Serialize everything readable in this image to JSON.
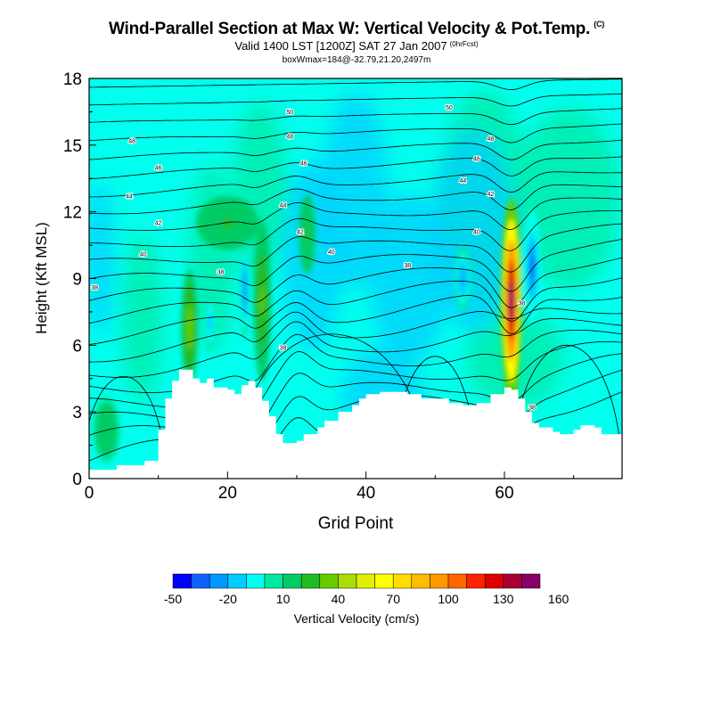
{
  "chart_data": {
    "type": "heatmap",
    "title": "Wind-Parallel Section at Max W: Vertical Velocity & Pot.Temp.",
    "title_tag": "(C)",
    "subtitle": "Valid 1400 LST [1200Z] SAT 27 Jan 2007",
    "subtitle_tag": "(0hrFcst)",
    "subtitle2": "boxWmax=184@-32.79,21.20,2497m",
    "xlabel": "Grid Point",
    "ylabel": "Height (Kft MSL)",
    "xlim": [
      0,
      77
    ],
    "ylim": [
      0,
      18
    ],
    "x_ticks": [
      "0",
      "20",
      "40",
      "60"
    ],
    "y_ticks": [
      "0",
      "3",
      "6",
      "9",
      "12",
      "15",
      "18"
    ],
    "colorbar": {
      "label": "Vertical Velocity (cm/s)",
      "tick_labels": [
        "-50",
        "-20",
        "10",
        "40",
        "70",
        "100",
        "130",
        "160"
      ],
      "colors": [
        "#0000ff",
        "#1060ff",
        "#0099ff",
        "#00ccff",
        "#00ffee",
        "#00e8a0",
        "#00cc66",
        "#22bb22",
        "#66cc00",
        "#aadd00",
        "#e0ee00",
        "#ffff00",
        "#ffdd00",
        "#ffbb00",
        "#ff9900",
        "#ff6600",
        "#ff2200",
        "#dd0000",
        "#aa0033",
        "#880066"
      ]
    },
    "terrain_top": [
      [
        0,
        0.4
      ],
      [
        4,
        0.6
      ],
      [
        8,
        0.8
      ],
      [
        10,
        2.2
      ],
      [
        11,
        3.6
      ],
      [
        12,
        4.4
      ],
      [
        13,
        4.9
      ],
      [
        14,
        4.9
      ],
      [
        15,
        4.5
      ],
      [
        16,
        4.3
      ],
      [
        17,
        4.5
      ],
      [
        18,
        4.1
      ],
      [
        20,
        4.0
      ],
      [
        21,
        3.8
      ],
      [
        22,
        4.2
      ],
      [
        23,
        4.4
      ],
      [
        24,
        4.1
      ],
      [
        25,
        3.5
      ],
      [
        26,
        2.8
      ],
      [
        27,
        2.0
      ],
      [
        28,
        1.6
      ],
      [
        30,
        1.7
      ],
      [
        31,
        2.0
      ],
      [
        33,
        2.3
      ],
      [
        34,
        2.6
      ],
      [
        36,
        3.0
      ],
      [
        38,
        3.3
      ],
      [
        39,
        3.6
      ],
      [
        40,
        3.8
      ],
      [
        42,
        3.9
      ],
      [
        44,
        3.9
      ],
      [
        46,
        3.8
      ],
      [
        48,
        3.6
      ],
      [
        50,
        3.6
      ],
      [
        52,
        3.4
      ],
      [
        54,
        3.3
      ],
      [
        56,
        3.4
      ],
      [
        58,
        3.8
      ],
      [
        60,
        4.1
      ],
      [
        61,
        4.0
      ],
      [
        62,
        3.6
      ],
      [
        63,
        3.0
      ],
      [
        64,
        2.5
      ],
      [
        65,
        2.3
      ],
      [
        67,
        2.1
      ],
      [
        68,
        2.0
      ],
      [
        70,
        2.2
      ],
      [
        71,
        2.4
      ],
      [
        73,
        2.3
      ],
      [
        74,
        2.0
      ],
      [
        77,
        2.0
      ]
    ],
    "updrafts": [
      {
        "x": 61,
        "y": 8.0,
        "width": 1.5,
        "height": 4.6,
        "value": 184
      },
      {
        "x": 14.5,
        "y": 6.8,
        "width": 1.2,
        "height": 2.6,
        "value": 45
      },
      {
        "x": 25,
        "y": 8.0,
        "width": 1.3,
        "height": 3.6,
        "value": 40
      },
      {
        "x": 31.5,
        "y": 11.0,
        "width": 1.2,
        "height": 1.8,
        "value": 25
      },
      {
        "x": 20,
        "y": 11.5,
        "width": 4.5,
        "height": 1.2,
        "value": 25
      },
      {
        "x": 2.5,
        "y": 2.2,
        "width": 2.0,
        "height": 1.5,
        "value": 15
      }
    ],
    "downdrafts": [
      {
        "x": 64,
        "y": 9.5,
        "width": 1.3,
        "height": 2.6,
        "value": -45
      },
      {
        "x": 22.5,
        "y": 8.5,
        "width": 0.7,
        "height": 2.2,
        "value": -35
      },
      {
        "x": 54,
        "y": 9.0,
        "width": 1.2,
        "height": 1.4,
        "value": -30
      },
      {
        "x": 17.5,
        "y": 7.0,
        "width": 0.8,
        "height": 1.2,
        "value": -20
      }
    ],
    "isentrope_labels": [
      {
        "x": 0.8,
        "y": 8.6,
        "text": "38"
      },
      {
        "x": 7.8,
        "y": 10.1,
        "text": "40"
      },
      {
        "x": 10,
        "y": 11.5,
        "text": "42"
      },
      {
        "x": 5.8,
        "y": 12.7,
        "text": "44"
      },
      {
        "x": 10,
        "y": 14.0,
        "text": "46"
      },
      {
        "x": 6.2,
        "y": 15.2,
        "text": "48"
      },
      {
        "x": 19,
        "y": 9.3,
        "text": "38"
      },
      {
        "x": 28,
        "y": 5.9,
        "text": "38"
      },
      {
        "x": 35,
        "y": 10.2,
        "text": "40"
      },
      {
        "x": 28,
        "y": 12.3,
        "text": "44"
      },
      {
        "x": 30.5,
        "y": 11.1,
        "text": "42"
      },
      {
        "x": 31,
        "y": 14.2,
        "text": "46"
      },
      {
        "x": 29,
        "y": 15.4,
        "text": "48"
      },
      {
        "x": 29,
        "y": 16.5,
        "text": "50"
      },
      {
        "x": 46,
        "y": 9.6,
        "text": "38"
      },
      {
        "x": 56,
        "y": 11.1,
        "text": "40"
      },
      {
        "x": 58,
        "y": 12.8,
        "text": "42"
      },
      {
        "x": 54,
        "y": 13.4,
        "text": "44"
      },
      {
        "x": 56,
        "y": 14.4,
        "text": "46"
      },
      {
        "x": 58,
        "y": 15.3,
        "text": "48"
      },
      {
        "x": 52,
        "y": 16.7,
        "text": "50"
      },
      {
        "x": 62.5,
        "y": 7.9,
        "text": "38"
      },
      {
        "x": 64,
        "y": 3.2,
        "text": "38"
      }
    ]
  }
}
